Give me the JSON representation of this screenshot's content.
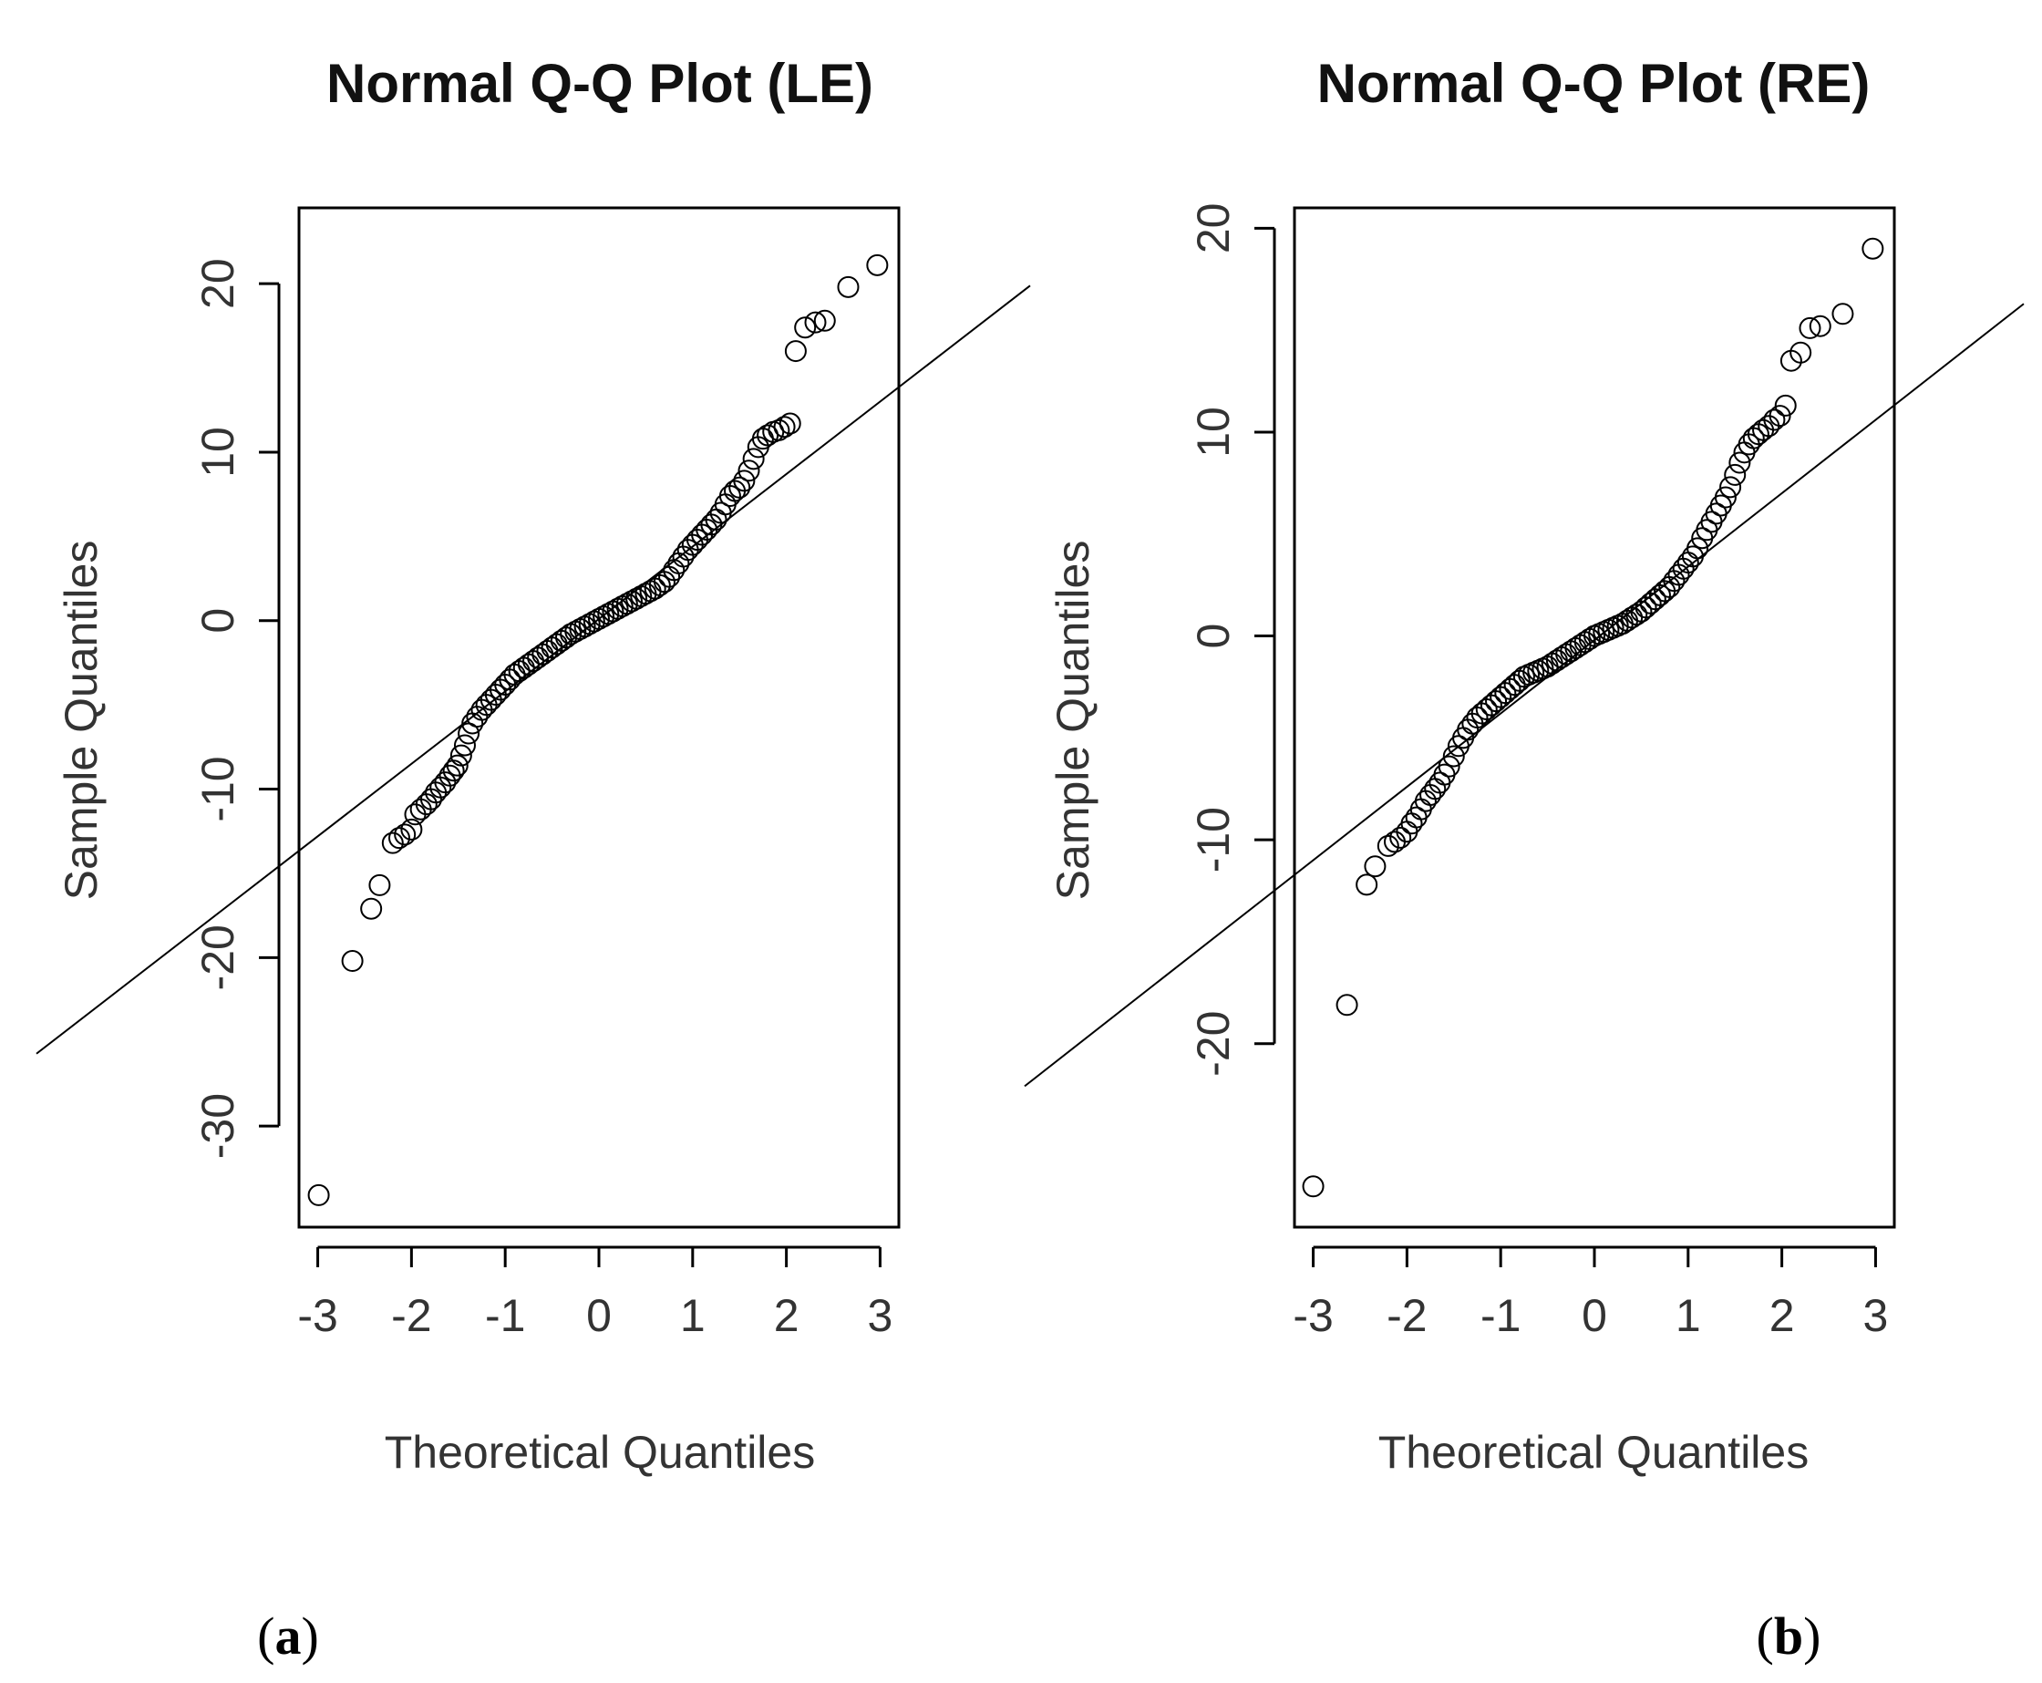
{
  "chart_data": [
    {
      "id": "le",
      "type": "scatter",
      "title": "Normal Q-Q Plot (LE)",
      "xlabel": "Theoretical Quantiles",
      "ylabel": "Sample Quantiles",
      "subfigure_label": "(a)",
      "subfigure_letter": "a",
      "xlim": [
        -3.2,
        3.2
      ],
      "ylim": [
        -36,
        24.5
      ],
      "x_ticks": [
        -3,
        -2,
        -1,
        0,
        1,
        2,
        3
      ],
      "x_tick_labels": [
        "-3",
        "-2",
        "-1",
        "0",
        "1",
        "2",
        "3"
      ],
      "y_ticks": [
        -30,
        -20,
        -10,
        0,
        10,
        20
      ],
      "y_tick_labels": [
        "-30",
        "-20",
        "-10",
        "0",
        "10",
        "20"
      ],
      "reference_line": {
        "intercept": 0.1,
        "slope": 4.3
      },
      "points": [
        [
          -2.99,
          -34.1
        ],
        [
          -2.63,
          -20.2
        ],
        [
          -2.43,
          -17.1
        ],
        [
          -2.34,
          -15.7
        ],
        [
          -2.2,
          -13.2
        ],
        [
          -2.13,
          -12.9
        ],
        [
          -2.07,
          -12.7
        ],
        [
          -2.0,
          -12.4
        ],
        [
          -1.96,
          -11.5
        ],
        [
          -1.9,
          -11.2
        ],
        [
          -1.84,
          -10.9
        ],
        [
          -1.79,
          -10.6
        ],
        [
          -1.74,
          -10.2
        ],
        [
          -1.69,
          -9.9
        ],
        [
          -1.64,
          -9.6
        ],
        [
          -1.59,
          -9.2
        ],
        [
          -1.55,
          -8.9
        ],
        [
          -1.51,
          -8.6
        ],
        [
          -1.47,
          -8.0
        ],
        [
          -1.43,
          -7.4
        ],
        [
          -1.39,
          -6.7
        ],
        [
          -1.35,
          -6.1
        ],
        [
          -1.3,
          -5.7
        ],
        [
          -1.25,
          -5.3
        ],
        [
          -1.2,
          -5.0
        ],
        [
          -1.15,
          -4.7
        ],
        [
          -1.1,
          -4.4
        ],
        [
          -1.05,
          -4.1
        ],
        [
          -1.0,
          -3.8
        ],
        [
          -0.95,
          -3.5
        ],
        [
          -0.9,
          -3.2
        ],
        [
          -0.85,
          -3.0
        ],
        [
          -0.8,
          -2.8
        ],
        [
          -0.75,
          -2.6
        ],
        [
          -0.7,
          -2.4
        ],
        [
          -0.65,
          -2.2
        ],
        [
          -0.6,
          -2.0
        ],
        [
          -0.55,
          -1.8
        ],
        [
          -0.5,
          -1.6
        ],
        [
          -0.45,
          -1.4
        ],
        [
          -0.4,
          -1.2
        ],
        [
          -0.35,
          -1.0
        ],
        [
          -0.3,
          -0.8
        ],
        [
          -0.25,
          -0.65
        ],
        [
          -0.2,
          -0.5
        ],
        [
          -0.15,
          -0.35
        ],
        [
          -0.1,
          -0.2
        ],
        [
          -0.05,
          -0.05
        ],
        [
          0.0,
          0.1
        ],
        [
          0.05,
          0.25
        ],
        [
          0.1,
          0.4
        ],
        [
          0.15,
          0.55
        ],
        [
          0.2,
          0.7
        ],
        [
          0.25,
          0.85
        ],
        [
          0.3,
          1.0
        ],
        [
          0.35,
          1.15
        ],
        [
          0.4,
          1.3
        ],
        [
          0.45,
          1.45
        ],
        [
          0.5,
          1.6
        ],
        [
          0.55,
          1.75
        ],
        [
          0.6,
          1.9
        ],
        [
          0.65,
          2.1
        ],
        [
          0.7,
          2.3
        ],
        [
          0.75,
          2.6
        ],
        [
          0.8,
          3.0
        ],
        [
          0.85,
          3.4
        ],
        [
          0.9,
          3.8
        ],
        [
          0.95,
          4.2
        ],
        [
          1.0,
          4.5
        ],
        [
          1.05,
          4.8
        ],
        [
          1.1,
          5.1
        ],
        [
          1.15,
          5.4
        ],
        [
          1.2,
          5.7
        ],
        [
          1.25,
          6.0
        ],
        [
          1.3,
          6.4
        ],
        [
          1.35,
          6.9
        ],
        [
          1.4,
          7.4
        ],
        [
          1.45,
          7.7
        ],
        [
          1.5,
          7.9
        ],
        [
          1.55,
          8.3
        ],
        [
          1.6,
          8.9
        ],
        [
          1.65,
          9.6
        ],
        [
          1.7,
          10.3
        ],
        [
          1.75,
          10.8
        ],
        [
          1.8,
          11.0
        ],
        [
          1.86,
          11.2
        ],
        [
          1.92,
          11.3
        ],
        [
          1.98,
          11.5
        ],
        [
          2.04,
          11.7
        ],
        [
          2.1,
          16.0
        ],
        [
          2.2,
          17.4
        ],
        [
          2.31,
          17.7
        ],
        [
          2.41,
          17.8
        ],
        [
          2.66,
          19.8
        ],
        [
          2.97,
          21.1
        ]
      ]
    },
    {
      "id": "re",
      "type": "scatter",
      "title": "Normal Q-Q Plot (RE)",
      "xlabel": "Theoretical Quantiles",
      "ylabel": "Sample Quantiles",
      "subfigure_label": "(b)",
      "subfigure_letter": "b",
      "xlim": [
        -3.2,
        3.2
      ],
      "ylim": [
        -29,
        21
      ],
      "x_ticks": [
        -3,
        -2,
        -1,
        0,
        1,
        2,
        3
      ],
      "x_tick_labels": [
        "-3",
        "-2",
        "-1",
        "0",
        "1",
        "2",
        "3"
      ],
      "y_ticks": [
        -20,
        -10,
        0,
        10,
        20
      ],
      "y_tick_labels": [
        "-20",
        "-10",
        "0",
        "10",
        "20"
      ],
      "reference_line": {
        "intercept": -0.2,
        "slope": 3.6
      },
      "points": [
        [
          -3.0,
          -27.0
        ],
        [
          -2.64,
          -18.1
        ],
        [
          -2.43,
          -12.2
        ],
        [
          -2.34,
          -11.3
        ],
        [
          -2.2,
          -10.3
        ],
        [
          -2.13,
          -10.1
        ],
        [
          -2.07,
          -9.9
        ],
        [
          -2.0,
          -9.6
        ],
        [
          -1.95,
          -9.2
        ],
        [
          -1.9,
          -8.9
        ],
        [
          -1.85,
          -8.5
        ],
        [
          -1.8,
          -8.1
        ],
        [
          -1.75,
          -7.8
        ],
        [
          -1.7,
          -7.5
        ],
        [
          -1.65,
          -7.2
        ],
        [
          -1.6,
          -6.8
        ],
        [
          -1.55,
          -6.4
        ],
        [
          -1.5,
          -5.9
        ],
        [
          -1.45,
          -5.4
        ],
        [
          -1.4,
          -5.0
        ],
        [
          -1.35,
          -4.6
        ],
        [
          -1.3,
          -4.3
        ],
        [
          -1.25,
          -4.0
        ],
        [
          -1.2,
          -3.8
        ],
        [
          -1.15,
          -3.6
        ],
        [
          -1.1,
          -3.4
        ],
        [
          -1.05,
          -3.2
        ],
        [
          -1.0,
          -3.0
        ],
        [
          -0.95,
          -2.8
        ],
        [
          -0.9,
          -2.6
        ],
        [
          -0.85,
          -2.4
        ],
        [
          -0.8,
          -2.2
        ],
        [
          -0.75,
          -2.0
        ],
        [
          -0.7,
          -1.9
        ],
        [
          -0.65,
          -1.8
        ],
        [
          -0.6,
          -1.7
        ],
        [
          -0.55,
          -1.6
        ],
        [
          -0.5,
          -1.5
        ],
        [
          -0.45,
          -1.35
        ],
        [
          -0.4,
          -1.2
        ],
        [
          -0.35,
          -1.05
        ],
        [
          -0.3,
          -0.9
        ],
        [
          -0.25,
          -0.75
        ],
        [
          -0.2,
          -0.6
        ],
        [
          -0.15,
          -0.45
        ],
        [
          -0.1,
          -0.3
        ],
        [
          -0.05,
          -0.15
        ],
        [
          0.0,
          0.0
        ],
        [
          0.05,
          0.1
        ],
        [
          0.1,
          0.2
        ],
        [
          0.15,
          0.3
        ],
        [
          0.2,
          0.4
        ],
        [
          0.25,
          0.5
        ],
        [
          0.3,
          0.6
        ],
        [
          0.35,
          0.75
        ],
        [
          0.4,
          0.9
        ],
        [
          0.45,
          1.05
        ],
        [
          0.5,
          1.2
        ],
        [
          0.55,
          1.4
        ],
        [
          0.6,
          1.6
        ],
        [
          0.65,
          1.8
        ],
        [
          0.7,
          2.0
        ],
        [
          0.75,
          2.2
        ],
        [
          0.8,
          2.4
        ],
        [
          0.85,
          2.7
        ],
        [
          0.9,
          3.0
        ],
        [
          0.95,
          3.3
        ],
        [
          1.0,
          3.6
        ],
        [
          1.05,
          3.9
        ],
        [
          1.1,
          4.3
        ],
        [
          1.15,
          4.8
        ],
        [
          1.2,
          5.2
        ],
        [
          1.25,
          5.6
        ],
        [
          1.3,
          6.0
        ],
        [
          1.35,
          6.4
        ],
        [
          1.4,
          6.8
        ],
        [
          1.45,
          7.3
        ],
        [
          1.5,
          7.9
        ],
        [
          1.55,
          8.5
        ],
        [
          1.6,
          9.0
        ],
        [
          1.65,
          9.4
        ],
        [
          1.7,
          9.7
        ],
        [
          1.75,
          9.9
        ],
        [
          1.8,
          10.1
        ],
        [
          1.86,
          10.3
        ],
        [
          1.92,
          10.6
        ],
        [
          1.98,
          10.8
        ],
        [
          2.04,
          11.3
        ],
        [
          2.1,
          13.5
        ],
        [
          2.2,
          13.9
        ],
        [
          2.3,
          15.1
        ],
        [
          2.41,
          15.2
        ],
        [
          2.65,
          15.8
        ],
        [
          2.97,
          19.0
        ]
      ]
    }
  ]
}
